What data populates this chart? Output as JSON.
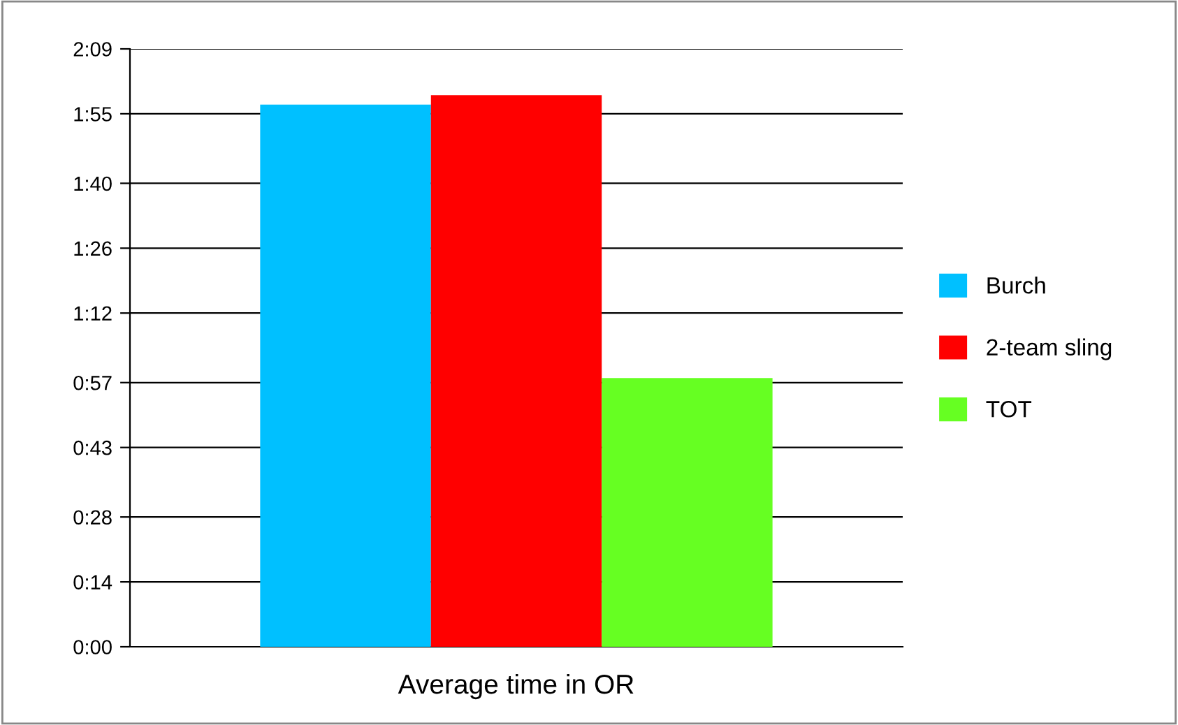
{
  "chart_data": {
    "type": "bar",
    "categories": [
      "Average time in OR"
    ],
    "series": [
      {
        "name": "Burch",
        "color": "#00c0ff",
        "values": [
          117
        ]
      },
      {
        "name": "2-team sling",
        "color": "#ff0000",
        "values": [
          119
        ]
      },
      {
        "name": "TOT",
        "color": "#66ff22",
        "values": [
          58
        ]
      }
    ],
    "ylim": [
      0,
      129
    ],
    "yticks": [
      {
        "value": 0,
        "label": "0:00"
      },
      {
        "value": 14,
        "label": "0:14"
      },
      {
        "value": 28,
        "label": "0:28"
      },
      {
        "value": 43,
        "label": "0:43"
      },
      {
        "value": 57,
        "label": "0:57"
      },
      {
        "value": 72,
        "label": "1:12"
      },
      {
        "value": 86,
        "label": "1:26"
      },
      {
        "value": 100,
        "label": "1:40"
      },
      {
        "value": 115,
        "label": "1:55"
      },
      {
        "value": 129,
        "label": "2:09"
      }
    ],
    "grid": "y",
    "legend": "right"
  }
}
